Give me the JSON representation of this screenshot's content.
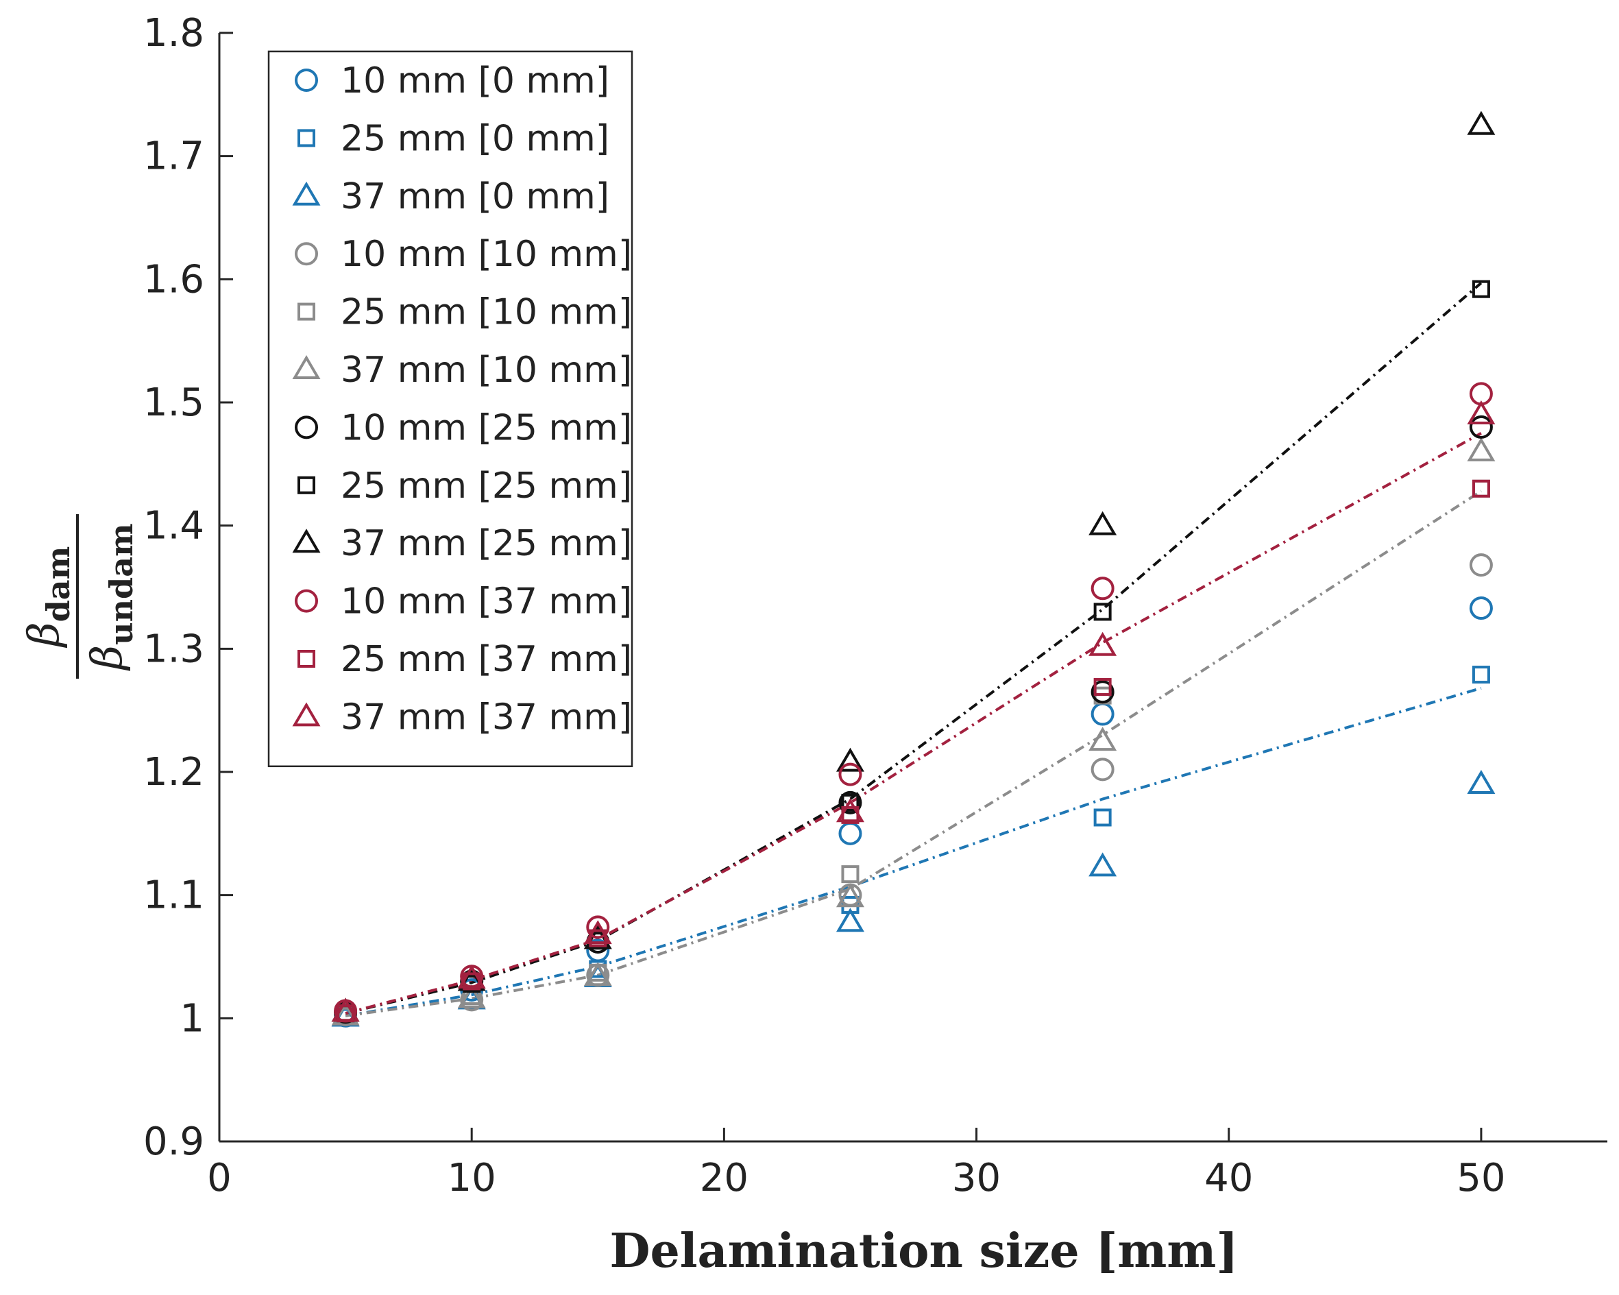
{
  "chart_data": {
    "type": "scatter",
    "title": "",
    "xlabel": "Delamination size [mm]",
    "ylabel": {
      "numerator_symbol": "β",
      "numerator_sub": "dam",
      "denominator_symbol": "β",
      "denominator_sub": "undam"
    },
    "xlim": [
      0,
      55
    ],
    "ylim": [
      0.9,
      1.8
    ],
    "xticks": [
      0,
      10,
      20,
      30,
      40,
      50
    ],
    "xtick_labels": [
      "0",
      "10",
      "20",
      "30",
      "40",
      "50"
    ],
    "yticks": [
      0.9,
      1.0,
      1.1,
      1.2,
      1.3,
      1.4,
      1.5,
      1.6,
      1.7,
      1.8
    ],
    "ytick_labels": [
      "0.9",
      "1",
      "1.1",
      "1.2",
      "1.3",
      "1.4",
      "1.5",
      "1.6",
      "1.7",
      "1.8"
    ],
    "grid": false,
    "legend_position": "top-left",
    "x": [
      5,
      10,
      15,
      25,
      35,
      50
    ],
    "colors": {
      "blue": "#1f77b4",
      "gray": "#8c8c8c",
      "black": "#111111",
      "red": "#a3213f"
    },
    "series": [
      {
        "name": "10 mm [0 mm]",
        "group": "blue",
        "marker": "circle",
        "values": [
          1.002,
          1.023,
          1.055,
          1.15,
          1.247,
          1.333
        ]
      },
      {
        "name": "25 mm [0 mm]",
        "group": "blue",
        "marker": "square",
        "values": [
          1.001,
          1.018,
          1.04,
          1.092,
          1.163,
          1.279
        ]
      },
      {
        "name": "37 mm [0 mm]",
        "group": "blue",
        "marker": "triangle",
        "values": [
          1.001,
          1.015,
          1.033,
          1.078,
          1.123,
          1.19
        ]
      },
      {
        "name": "10 mm [10 mm]",
        "group": "gray",
        "marker": "circle",
        "values": [
          1.003,
          1.015,
          1.035,
          1.1,
          1.202,
          1.368
        ]
      },
      {
        "name": "25 mm [10 mm]",
        "group": "gray",
        "marker": "square",
        "values": [
          1.002,
          1.018,
          1.037,
          1.117,
          1.262,
          1.43
        ]
      },
      {
        "name": "37 mm [10 mm]",
        "group": "gray",
        "marker": "triangle",
        "values": [
          1.002,
          1.016,
          1.034,
          1.098,
          1.225,
          1.46
        ]
      },
      {
        "name": "10 mm [25 mm]",
        "group": "black",
        "marker": "circle",
        "values": [
          1.005,
          1.03,
          1.062,
          1.175,
          1.265,
          1.48
        ]
      },
      {
        "name": "25 mm [25 mm]",
        "group": "black",
        "marker": "square",
        "values": [
          1.004,
          1.028,
          1.063,
          1.175,
          1.33,
          1.592
        ]
      },
      {
        "name": "37 mm [25 mm]",
        "group": "black",
        "marker": "triangle",
        "values": [
          1.005,
          1.03,
          1.064,
          1.208,
          1.4,
          1.725
        ]
      },
      {
        "name": "10 mm [37 mm]",
        "group": "red",
        "marker": "circle",
        "values": [
          1.006,
          1.034,
          1.074,
          1.198,
          1.349,
          1.507
        ]
      },
      {
        "name": "25 mm [37 mm]",
        "group": "red",
        "marker": "square",
        "values": [
          1.004,
          1.03,
          1.065,
          1.165,
          1.269,
          1.43
        ]
      },
      {
        "name": "37 mm [37 mm]",
        "group": "red",
        "marker": "triangle",
        "values": [
          1.005,
          1.032,
          1.068,
          1.167,
          1.302,
          1.49
        ]
      }
    ],
    "trend_lines": [
      {
        "name": "trend-blue",
        "group": "blue",
        "values": [
          1.002,
          1.019,
          1.042,
          1.107,
          1.178,
          1.268
        ]
      },
      {
        "name": "trend-gray",
        "group": "gray",
        "values": [
          1.002,
          1.016,
          1.035,
          1.105,
          1.23,
          1.428
        ]
      },
      {
        "name": "trend-black",
        "group": "black",
        "values": [
          1.004,
          1.029,
          1.063,
          1.178,
          1.332,
          1.597
        ]
      },
      {
        "name": "trend-red",
        "group": "red",
        "values": [
          1.004,
          1.031,
          1.064,
          1.175,
          1.305,
          1.475
        ]
      }
    ]
  }
}
